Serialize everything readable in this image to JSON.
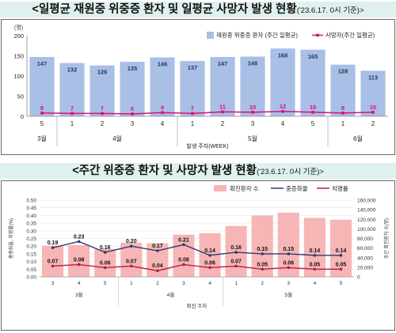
{
  "header1": {
    "title": "<일평균 재원중 위중증 환자 및 일평균 사망자 발생 현황",
    "note": "('23.6.17. 0시 기준)>"
  },
  "header2": {
    "title": "<주간 위중증 환자 및 사망자 발생 현황",
    "note": "('23.6.17. 0시 기준)>"
  },
  "chart_data": [
    {
      "type": "bar",
      "title": "",
      "unit": "(명)",
      "xlabel": "발생 주차(WEEK)",
      "ylim": [
        0,
        200
      ],
      "yticks": [
        0,
        50,
        100,
        150,
        200
      ],
      "grid": false,
      "legend_position": "top-right",
      "categories": [
        "5",
        "1",
        "2",
        "3",
        "4",
        "1",
        "2",
        "3",
        "4",
        "5",
        "1",
        "2"
      ],
      "month_groups": [
        {
          "label": "3월",
          "start": 0,
          "count": 1
        },
        {
          "label": "4월",
          "start": 1,
          "count": 4
        },
        {
          "label": "5월",
          "start": 5,
          "count": 5
        },
        {
          "label": "6월",
          "start": 10,
          "count": 2
        }
      ],
      "series": [
        {
          "name": "재원중 위중증 환자 (주간 일평균)",
          "type": "bar",
          "color": "#a9bfe6",
          "values": [
            147,
            132,
            126,
            135,
            146,
            137,
            147,
            148,
            168,
            165,
            128,
            113
          ]
        },
        {
          "name": "사망자(주간 일평균)",
          "type": "line",
          "color": "#d9117a",
          "values": [
            8,
            7,
            7,
            6,
            9,
            7,
            11,
            10,
            12,
            10,
            8,
            10
          ]
        }
      ]
    },
    {
      "type": "bar",
      "title": "",
      "xlabel": "확진 주차",
      "ylabel_left": "중증화율, 치명률(%)",
      "ylabel_right": "주간 확진환자 수(명)",
      "ylim_left": [
        0,
        0.5
      ],
      "yticks_left": [
        "0.00",
        "0.05",
        "0.10",
        "0.15",
        "0.20",
        "0.25",
        "0.30",
        "0.35",
        "0.40",
        "0.45",
        "0.50"
      ],
      "ylim_right": [
        0,
        160000
      ],
      "yticks_right": [
        "0",
        "20,000",
        "40,000",
        "60,000",
        "80,000",
        "100,000",
        "120,000",
        "140,000",
        "160,000"
      ],
      "grid": true,
      "legend_position": "top-right",
      "categories": [
        "3",
        "4",
        "5",
        "1",
        "2",
        "3",
        "4",
        "1",
        "2",
        "3",
        "4",
        "5"
      ],
      "month_groups": [
        {
          "label": "3월",
          "start": 0,
          "count": 3
        },
        {
          "label": "4월",
          "start": 3,
          "count": 4
        },
        {
          "label": "5월",
          "start": 7,
          "count": 5
        }
      ],
      "series": [
        {
          "name": "확진환자 수",
          "type": "bar",
          "axis": "right",
          "color": "#f7b5b5",
          "values": [
            65000,
            66000,
            58000,
            71000,
            70000,
            88000,
            91000,
            106000,
            128000,
            134000,
            123000,
            119000
          ]
        },
        {
          "name": "중증화율",
          "type": "line",
          "axis": "left",
          "color": "#2e3c70",
          "values": [
            0.19,
            0.23,
            0.16,
            0.2,
            0.17,
            0.21,
            0.14,
            0.16,
            0.15,
            0.15,
            0.14,
            0.14
          ]
        },
        {
          "name": "치명률",
          "type": "line",
          "axis": "left",
          "color": "#b2213f",
          "values": [
            0.07,
            0.08,
            0.06,
            0.07,
            0.04,
            0.08,
            0.06,
            0.07,
            0.05,
            0.06,
            0.05,
            0.05
          ]
        }
      ]
    }
  ]
}
